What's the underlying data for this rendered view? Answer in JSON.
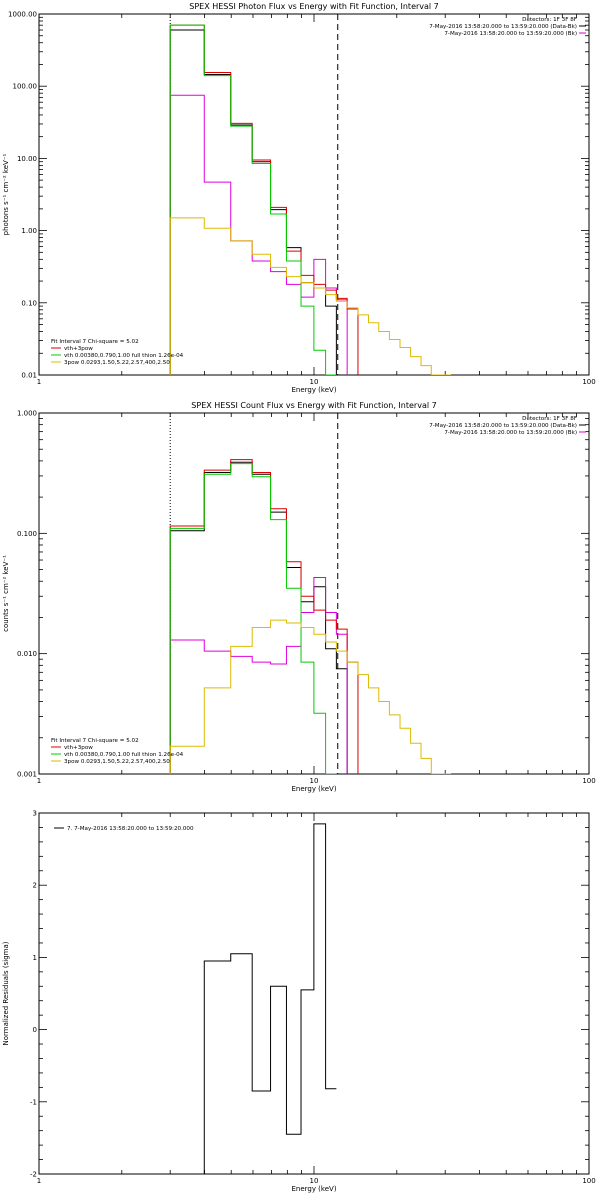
{
  "chart_data": [
    {
      "type": "line",
      "title": "SPEX HESSI Photon Flux vs Energy with Fit Function, Interval 7",
      "xlabel": "Energy (keV)",
      "ylabel": "photons s⁻¹ cm⁻² keV⁻¹",
      "xscale": "log",
      "yscale": "log",
      "xlim": [
        1,
        100
      ],
      "ylim": [
        0.01,
        1000
      ],
      "xticks": [
        {
          "v": 1,
          "label": "1"
        },
        {
          "v": 10,
          "label": "10"
        },
        {
          "v": 100,
          "label": "100"
        }
      ],
      "yticks": [
        {
          "v": 0.01,
          "label": "0.01"
        },
        {
          "v": 0.1,
          "label": "0.10"
        },
        {
          "v": 1,
          "label": "1.00"
        },
        {
          "v": 10,
          "label": "10.00"
        },
        {
          "v": 100,
          "label": "100.00"
        },
        {
          "v": 1000,
          "label": "1000.00"
        }
      ],
      "edges": [
        3.0,
        3.99,
        4.98,
        5.96,
        6.95,
        7.94,
        8.97,
        9.99,
        11.02,
        12.06,
        13.2,
        14.45,
        15.78,
        17.2,
        18.8,
        20.55,
        22.45,
        24.5,
        26.7,
        29.2,
        31.5
      ],
      "vlines": [
        {
          "x": 3.0,
          "style": "dotted"
        },
        {
          "x": 12.2,
          "style": "dashed"
        }
      ],
      "header": {
        "detectors": "Detectors: 1F 3F 8F",
        "lines": [
          {
            "text": "7-May-2016 13:58:20.000 to 13:59:20.000 (Data-Bk)",
            "color": "#000000"
          },
          {
            "text": "7-May-2016 13:58:20.000 to 13:59:20.000 (Bk)",
            "color": "#dd00dd"
          }
        ]
      },
      "legend": {
        "title": "Fit Interval 7   Chi-square = 5.02",
        "entries": [
          {
            "text": "vth+3pow",
            "color": "#dd0000"
          },
          {
            "text": "vth 0.00380,0.790,1.00  full thion 1.26e-04",
            "color": "#00cc00"
          },
          {
            "text": "3pow 0.0293,1.50,5.22,2.57,400,2.50",
            "color": "#ddbb00"
          }
        ]
      },
      "series": [
        {
          "name": "Data-Bk",
          "color": "#000000",
          "values": [
            600,
            145,
            29,
            9.0,
            1.95,
            0.58,
            0.19,
            0.16,
            0.09,
            null,
            null,
            null,
            null,
            null,
            null,
            null,
            null,
            null,
            null,
            null
          ]
        },
        {
          "name": "Bk",
          "color": "#dd00dd",
          "values": [
            75,
            4.7,
            0.72,
            0.38,
            0.27,
            0.18,
            0.12,
            0.4,
            0.16,
            0.11,
            null,
            null,
            null,
            null,
            null,
            null,
            null,
            null,
            null,
            null
          ]
        },
        {
          "name": "vth+3pow",
          "color": "#dd0000",
          "values": [
            700,
            155,
            30.5,
            9.5,
            2.1,
            0.52,
            0.24,
            0.18,
            0.15,
            0.115,
            0.082,
            null,
            null,
            null,
            null,
            null,
            null,
            null,
            null,
            null
          ]
        },
        {
          "name": "vth",
          "color": "#00cc00",
          "values": [
            700,
            140,
            28,
            8.5,
            1.7,
            0.38,
            0.09,
            0.022,
            0.005,
            null,
            null,
            null,
            null,
            null,
            null,
            null,
            null,
            null,
            null,
            null
          ]
        },
        {
          "name": "3pow",
          "color": "#ddbb00",
          "values": [
            1.5,
            1.08,
            0.72,
            0.47,
            0.31,
            0.23,
            0.19,
            0.16,
            0.13,
            0.105,
            0.085,
            0.068,
            0.053,
            0.04,
            0.031,
            0.024,
            0.018,
            0.0135,
            0.01,
            0.0075
          ]
        }
      ]
    },
    {
      "type": "line",
      "title": "SPEX HESSI Count Flux vs Energy with Fit Function, Interval 7",
      "xlabel": "Energy (keV)",
      "ylabel": "counts s⁻¹ cm⁻² keV⁻¹",
      "xscale": "log",
      "yscale": "log",
      "xlim": [
        1,
        100
      ],
      "ylim": [
        0.001,
        1
      ],
      "xticks": [
        {
          "v": 1,
          "label": "1"
        },
        {
          "v": 10,
          "label": "10"
        },
        {
          "v": 100,
          "label": "100"
        }
      ],
      "yticks": [
        {
          "v": 0.001,
          "label": "0.001"
        },
        {
          "v": 0.01,
          "label": "0.010"
        },
        {
          "v": 0.1,
          "label": "0.100"
        },
        {
          "v": 1,
          "label": "1.000"
        }
      ],
      "edges": [
        3.0,
        3.99,
        4.98,
        5.96,
        6.95,
        7.94,
        8.97,
        9.99,
        11.02,
        12.06,
        13.2,
        14.45,
        15.78,
        17.2,
        18.8,
        20.55,
        22.45,
        24.5,
        26.7,
        29.2,
        31.5
      ],
      "vlines": [
        {
          "x": 3.0,
          "style": "dotted"
        },
        {
          "x": 12.2,
          "style": "dashed"
        }
      ],
      "header": {
        "detectors": "Detectors: 1F 3F 8F",
        "lines": [
          {
            "text": "7-May-2016 13:58:20.000 to 13:59:20.000 (Data-Bk)",
            "color": "#000000"
          },
          {
            "text": "7-May-2016 13:58:20.000 to 13:59:20.000 (Bk)",
            "color": "#dd00dd"
          }
        ]
      },
      "legend": {
        "title": "Fit Interval 7   Chi-square = 5.02",
        "entries": [
          {
            "text": "vth+3pow",
            "color": "#dd0000"
          },
          {
            "text": "vth 0.00380,0.790,1.00  full thion 1.26e-04",
            "color": "#00cc00"
          },
          {
            "text": "3pow 0.0293,1.50,5.22,2.57,400,2.50",
            "color": "#ddbb00"
          }
        ]
      },
      "series": [
        {
          "name": "Data-Bk",
          "color": "#000000",
          "values": [
            0.105,
            0.32,
            0.39,
            0.31,
            0.15,
            0.052,
            0.027,
            0.036,
            0.011,
            0.0075,
            null,
            null,
            null,
            null,
            null,
            null,
            null,
            null,
            null,
            null
          ]
        },
        {
          "name": "Bk",
          "color": "#dd00dd",
          "values": [
            0.013,
            0.0105,
            0.0095,
            0.0085,
            0.0082,
            0.0115,
            0.022,
            0.043,
            0.022,
            0.0145,
            null,
            null,
            null,
            null,
            null,
            null,
            null,
            null,
            null,
            null
          ]
        },
        {
          "name": "vth+3pow",
          "color": "#dd0000",
          "values": [
            0.115,
            0.335,
            0.41,
            0.32,
            0.16,
            0.058,
            0.03,
            0.023,
            0.019,
            0.016,
            0.0085,
            null,
            null,
            null,
            null,
            null,
            null,
            null,
            null,
            null
          ]
        },
        {
          "name": "vth",
          "color": "#00cc00",
          "values": [
            0.11,
            0.31,
            0.38,
            0.295,
            0.13,
            0.035,
            0.0085,
            0.0032,
            0.0009,
            null,
            null,
            null,
            null,
            null,
            null,
            null,
            null,
            null,
            null,
            null
          ]
        },
        {
          "name": "3pow",
          "color": "#ddbb00",
          "values": [
            0.0017,
            0.0052,
            0.0115,
            0.0165,
            0.019,
            0.018,
            0.0165,
            0.0145,
            0.0125,
            0.0105,
            0.0085,
            0.0067,
            0.0052,
            0.004,
            0.0031,
            0.0024,
            0.0018,
            0.00135,
            0.001,
            0.0008
          ]
        }
      ]
    },
    {
      "type": "line",
      "title": "",
      "xlabel": "Energy (keV)",
      "ylabel": "Normalized Residuals (sigma)",
      "xscale": "log",
      "yscale": "linear",
      "xlim": [
        1,
        100
      ],
      "ylim": [
        -2,
        3
      ],
      "xticks": [
        {
          "v": 1,
          "label": "1"
        },
        {
          "v": 10,
          "label": "10"
        },
        {
          "v": 100,
          "label": "100"
        }
      ],
      "yticks": [
        {
          "v": -2,
          "label": "-2"
        },
        {
          "v": -1,
          "label": "-1"
        },
        {
          "v": 0,
          "label": "0"
        },
        {
          "v": 1,
          "label": "1"
        },
        {
          "v": 2,
          "label": "2"
        },
        {
          "v": 3,
          "label": "3"
        }
      ],
      "edges": [
        3.0,
        3.99,
        4.98,
        5.96,
        6.95,
        7.94,
        8.97,
        9.99,
        11.02,
        12.06
      ],
      "vlines": [],
      "header": {
        "detectors": "",
        "lines": []
      },
      "legend": {
        "title": "",
        "entries": [
          {
            "text": "7.  7-May-2016 13:58:20.000 to 13:59:20.000",
            "color": "#000000"
          }
        ]
      },
      "series": [
        {
          "name": "Residuals",
          "color": "#000000",
          "values": [
            -2.0,
            0.95,
            1.05,
            -0.85,
            0.6,
            -1.45,
            0.55,
            2.85,
            -0.82
          ]
        }
      ]
    }
  ]
}
